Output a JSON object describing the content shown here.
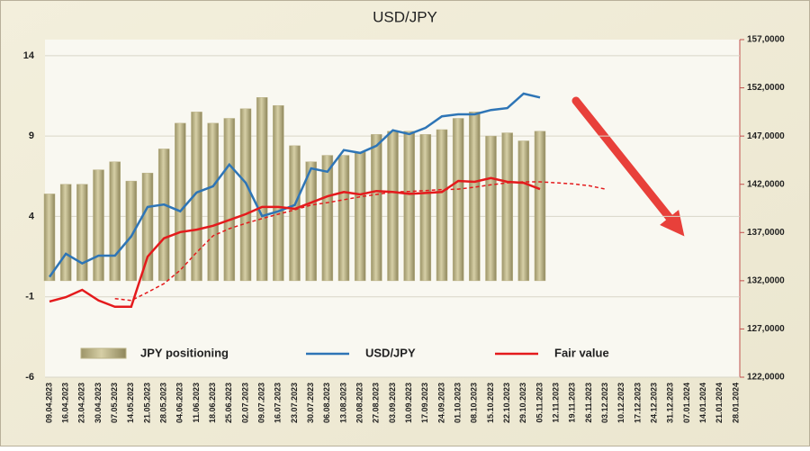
{
  "chart_data": {
    "type": "bar_line",
    "title": "USD/JPY",
    "categories": [
      "09.04.2023",
      "16.04.2023",
      "23.04.2023",
      "30.04.2023",
      "07.05.2023",
      "14.05.2023",
      "21.05.2023",
      "28.05.2023",
      "04.06.2023",
      "11.06.2023",
      "18.06.2023",
      "25.06.2023",
      "02.07.2023",
      "09.07.2023",
      "16.07.2023",
      "23.07.2023",
      "30.07.2023",
      "06.08.2023",
      "13.08.2023",
      "20.08.2023",
      "27.08.2023",
      "03.09.2023",
      "10.09.2023",
      "17.09.2023",
      "24.09.2023",
      "01.10.2023",
      "08.10.2023",
      "15.10.2023",
      "22.10.2023",
      "29.10.2023",
      "05.11.2023",
      "12.11.2023",
      "19.11.2023",
      "26.11.2023",
      "03.12.2023",
      "10.12.2023",
      "17.12.2023",
      "24.12.2023",
      "31.12.2023",
      "07.01.2024",
      "14.01.2024",
      "21.01.2024",
      "28.01.2024"
    ],
    "series": [
      {
        "name": "JPY positioning",
        "kind": "bar",
        "color": "#bcb388",
        "values": [
          5.4,
          6.0,
          6.0,
          6.9,
          7.4,
          6.2,
          6.7,
          8.2,
          9.8,
          10.5,
          9.8,
          10.1,
          10.7,
          11.4,
          10.9,
          8.4,
          7.4,
          7.8,
          7.8,
          8.0,
          9.1,
          9.3,
          9.3,
          9.1,
          9.4,
          10.1,
          10.5,
          9.0,
          9.2,
          8.7,
          9.3,
          null,
          null,
          null,
          null,
          null,
          null,
          null,
          null,
          null,
          null,
          null,
          null
        ]
      },
      {
        "name": "USD/JPY",
        "kind": "line",
        "axis": "y2",
        "color": "#2e75b6",
        "values": [
          132400,
          134800,
          133800,
          134600,
          134600,
          136600,
          139650,
          139900,
          139200,
          141150,
          141800,
          144050,
          142150,
          138700,
          139200,
          139850,
          143650,
          143300,
          145550,
          145250,
          146000,
          147600,
          147200,
          147850,
          149050,
          149250,
          149250,
          149700,
          149900,
          151400,
          151000,
          null,
          null,
          null,
          null,
          null,
          null,
          null,
          null,
          null,
          null,
          null,
          null
        ]
      },
      {
        "name": "Fair value",
        "kind": "line",
        "axis": "y2",
        "color": "#e41a1c",
        "values": [
          129850,
          130300,
          131050,
          129950,
          129300,
          129300,
          134500,
          136400,
          137050,
          137300,
          137700,
          138300,
          138900,
          139650,
          139650,
          139450,
          140100,
          140750,
          141200,
          140950,
          141300,
          141200,
          141000,
          141100,
          141200,
          142350,
          142250,
          142650,
          142250,
          142150,
          141500,
          null,
          null,
          null,
          null,
          null,
          null,
          null,
          null,
          null,
          null,
          null,
          null
        ]
      },
      {
        "kind": "dashed",
        "axis": "y2",
        "color": "#e41a1c",
        "values": [
          null,
          null,
          null,
          null,
          130150,
          129950,
          130800,
          131700,
          133100,
          134950,
          136650,
          137400,
          137950,
          138450,
          138900,
          139350,
          139850,
          140100,
          140400,
          140700,
          140950,
          141200,
          141250,
          141350,
          141450,
          141500,
          141700,
          141950,
          142150,
          142250,
          142250,
          142150,
          142050,
          141850,
          141500,
          null,
          null,
          null,
          null,
          null,
          null,
          null,
          null
        ]
      }
    ],
    "ylim": [
      -6,
      15
    ],
    "yticks": [
      -6,
      -1,
      4,
      9,
      14
    ],
    "y2lim": [
      122000,
      157000
    ],
    "y2ticks": [
      {
        "value": 122000,
        "label": "122,0000"
      },
      {
        "value": 127000,
        "label": "127,0000"
      },
      {
        "value": 132000,
        "label": "132,0000"
      },
      {
        "value": 137000,
        "label": "137,0000"
      },
      {
        "value": 142000,
        "label": "142,0000"
      },
      {
        "value": 147000,
        "label": "147,0000"
      },
      {
        "value": 152000,
        "label": "152,0000"
      },
      {
        "value": 157000,
        "label": "157,0000"
      }
    ],
    "grid": true
  }
}
